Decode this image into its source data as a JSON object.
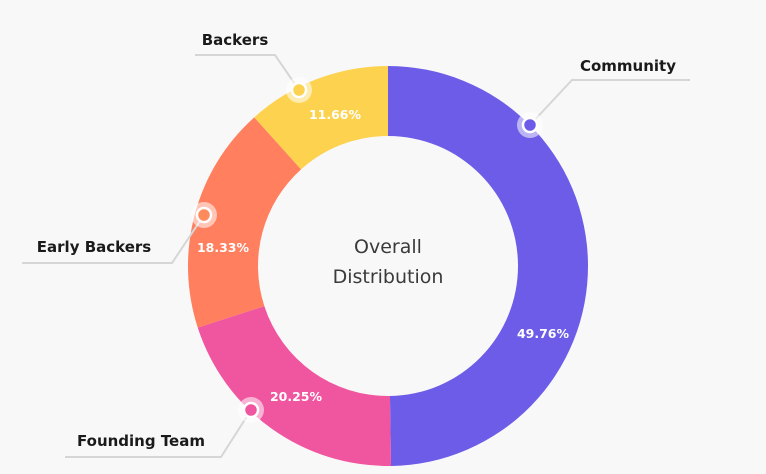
{
  "chart_data": {
    "type": "pie",
    "style": "donut",
    "title": "Overall Distribution",
    "title_lines": [
      "Overall",
      "Distribution"
    ],
    "slices": [
      {
        "name": "Community",
        "value": 49.76,
        "label": "49.76%",
        "color": "#6c5ce7"
      },
      {
        "name": "Founding Team",
        "value": 20.25,
        "label": "20.25%",
        "color": "#f0559f"
      },
      {
        "name": "Early Backers",
        "value": 18.33,
        "label": "18.33%",
        "color": "#ff7f5e"
      },
      {
        "name": "Backers",
        "value": 11.66,
        "label": "11.66%",
        "color": "#fcd24f"
      }
    ],
    "legend": "callouts",
    "dot_colors": [
      "#6c5ce7",
      "#f0559f",
      "#ff8a5c",
      "#fcd24f"
    ]
  }
}
